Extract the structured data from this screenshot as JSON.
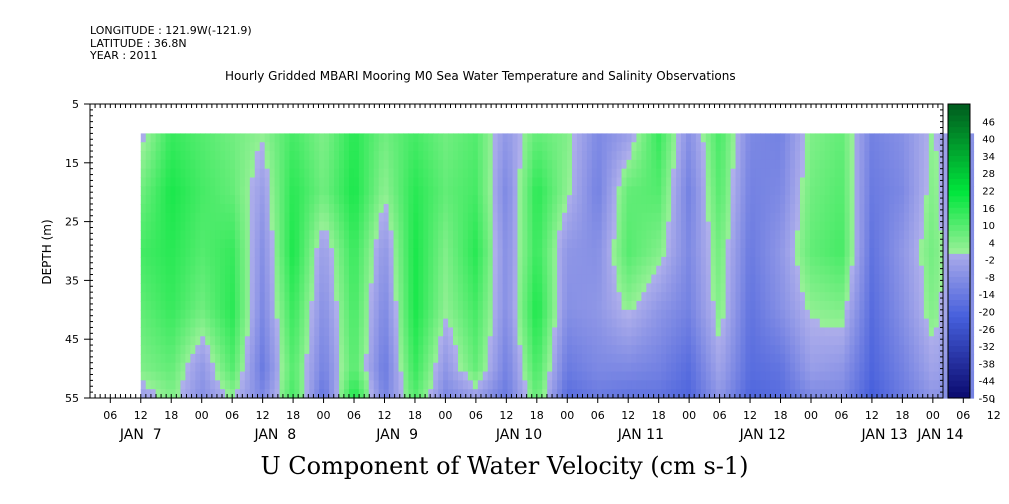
{
  "meta": {
    "longitude": "LONGITUDE : 121.9W(-121.9)",
    "latitude": "LATITUDE : 36.8N",
    "year": "YEAR : 2011"
  },
  "chart_data": {
    "type": "heatmap",
    "title": "Hourly Gridded MBARI Mooring M0 Sea Water Temperature and Salinity Observations",
    "xlabel": "U Component of Water Velocity (cm s-1)",
    "ylabel": "DEPTH (m)",
    "ylim": [
      5,
      55
    ],
    "y_inverted": true,
    "y_ticks": [
      5,
      15,
      25,
      35,
      45,
      55
    ],
    "x_hour_ticks": [
      "06",
      "12",
      "18",
      "00",
      "06",
      "12",
      "18",
      "00",
      "06",
      "12",
      "18",
      "00",
      "06",
      "12",
      "18",
      "00",
      "06",
      "12",
      "18",
      "00",
      "06",
      "12",
      "18",
      "00",
      "06",
      "12",
      "18",
      "00",
      "06",
      "12",
      "18",
      "00",
      "06"
    ],
    "x_day_labels": [
      "JAN  7",
      "JAN  8",
      "JAN  9",
      "JAN 10",
      "JAN 11",
      "JAN 12",
      "JAN 13",
      "JAN 14"
    ],
    "x_range_hours": [
      "2011-01-07 02:00",
      "2011-01-14 08:00"
    ],
    "data_x_range_hours": [
      "2011-01-07 12:00",
      "2011-01-14 08:00"
    ],
    "data_depth_range": [
      10,
      55
    ],
    "colorbar_labels": [
      "46",
      "40",
      "34",
      "28",
      "22",
      "16",
      "10",
      "4",
      "-2",
      "-8",
      "-14",
      "-20",
      "-26",
      "-32",
      "-38",
      "-44",
      "-50"
    ],
    "colorbar_range": [
      -50,
      52
    ],
    "time_hours": [
      0,
      6,
      12,
      18,
      24,
      30,
      36,
      42,
      48,
      54,
      60,
      66,
      72,
      78,
      84,
      90,
      96,
      102,
      108,
      114,
      120,
      126,
      132,
      138,
      144,
      150,
      156,
      162,
      164
    ],
    "depths_m": [
      10,
      20,
      30,
      40,
      50,
      55
    ],
    "values": [
      [
        -2,
        6,
        12,
        8,
        4,
        -4
      ],
      [
        14,
        18,
        16,
        14,
        8,
        4
      ],
      [
        10,
        12,
        10,
        6,
        -6,
        -8
      ],
      [
        6,
        8,
        14,
        16,
        10,
        2
      ],
      [
        2,
        -4,
        -8,
        -10,
        -14,
        -10
      ],
      [
        12,
        16,
        18,
        14,
        10,
        12
      ],
      [
        4,
        6,
        -4,
        -8,
        -12,
        -16
      ],
      [
        16,
        18,
        14,
        12,
        10,
        18
      ],
      [
        6,
        2,
        -6,
        -10,
        -14,
        -12
      ],
      [
        12,
        16,
        18,
        18,
        14,
        10
      ],
      [
        6,
        8,
        4,
        2,
        -6,
        -10
      ],
      [
        10,
        12,
        16,
        12,
        8,
        -4
      ],
      [
        -6,
        -10,
        -8,
        -8,
        -12,
        -14
      ],
      [
        8,
        16,
        14,
        18,
        12,
        8
      ],
      [
        4,
        2,
        -6,
        -8,
        -14,
        -18
      ],
      [
        -10,
        -12,
        -8,
        -6,
        -10,
        -14
      ],
      [
        -4,
        8,
        10,
        2,
        -10,
        -16
      ],
      [
        14,
        10,
        4,
        -6,
        -12,
        -16
      ],
      [
        -8,
        -12,
        -10,
        -12,
        -18,
        -20
      ],
      [
        12,
        10,
        6,
        4,
        -2,
        -6
      ],
      [
        -10,
        -12,
        -14,
        -16,
        -18,
        -20
      ],
      [
        -12,
        -10,
        -6,
        -8,
        -16,
        -18
      ],
      [
        4,
        6,
        8,
        2,
        -4,
        -10
      ],
      [
        8,
        10,
        12,
        4,
        -6,
        -10
      ],
      [
        -12,
        -14,
        -16,
        -18,
        -20,
        -22
      ],
      [
        -8,
        -10,
        -6,
        -8,
        -12,
        -14
      ],
      [
        2,
        4,
        6,
        4,
        -2,
        -6
      ],
      [
        -10,
        -12,
        -10,
        -8,
        -10,
        -12
      ],
      [
        -6,
        -8,
        -8,
        -8,
        -10,
        -12
      ]
    ]
  }
}
